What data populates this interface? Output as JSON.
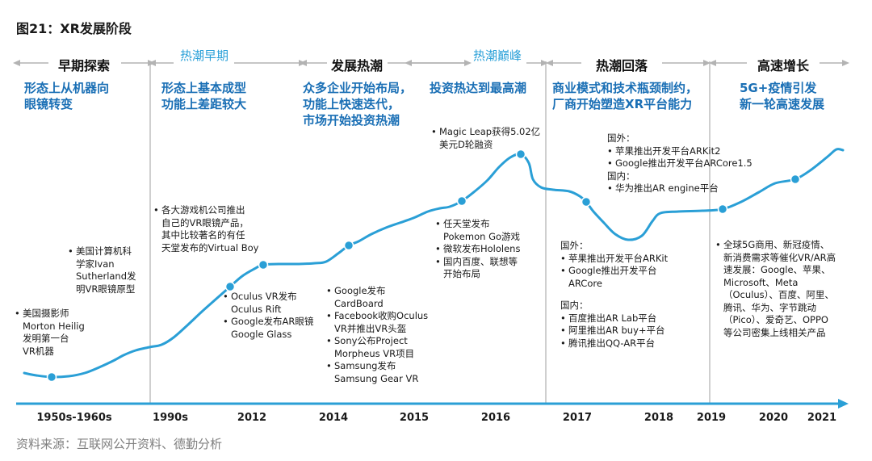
{
  "figure_title": "图21：XR发展阶段",
  "source": "资料来源：互联网公开资料、德勤分析",
  "colors": {
    "curve": "#2a9fd6",
    "axis": "#2a9fd6",
    "point": "#2a9fd6",
    "description": "#1a6fb5",
    "sub_label": "#2aa0d8",
    "divider": "#bfbfbf",
    "stage_arrow": "#b3b3b3"
  },
  "chart_data": {
    "type": "line",
    "title": "",
    "xlabel": "",
    "ylabel": "",
    "grid": false,
    "legend": "none",
    "x_tick_labels": [
      "1950s-1960s",
      "1990s",
      "2012",
      "2014",
      "2015",
      "2016",
      "2017",
      "2018",
      "2019",
      "2020",
      "2021"
    ],
    "stages": [
      {
        "name": "早期探索",
        "description": [
          "形态上从机器向",
          "眼镜转变"
        ]
      },
      {
        "name": "",
        "sub_label": "热潮早期",
        "description": [
          "形态上基本成型",
          "功能上差距较大"
        ]
      },
      {
        "name": "发展热潮",
        "description": [
          "众多企业开始布局，",
          "功能上快速迭代，",
          "市场开始投资热潮"
        ]
      },
      {
        "name": "",
        "sub_label": "热潮巅峰",
        "description": [
          "投资热达到最高潮"
        ]
      },
      {
        "name": "热潮回落",
        "description": [
          "商业模式和技术瓶颈制约，",
          "厂商开始塑造XR平台能力"
        ]
      },
      {
        "name": "高速增长",
        "description": [
          "5G+疫情引发",
          "新一轮高速发展"
        ]
      }
    ],
    "annotations": [
      {
        "id": "a1",
        "lines": [
          "美国摄影师",
          "Morton Heilig",
          "发明第一台",
          "VR机器"
        ]
      },
      {
        "id": "a2",
        "lines": [
          "美国计算机科",
          "学家Ivan",
          "Sutherland发",
          "明VR眼镜原型"
        ]
      },
      {
        "id": "a3",
        "lines": [
          "各大游戏机公司推出",
          "自己的VR眼镜产品，",
          "其中比较著名的有任",
          "天堂发布的Virtual Boy"
        ]
      },
      {
        "id": "a4",
        "lines": [
          "Oculus VR发布",
          "Oculus Rift",
          "Google发布AR眼镜",
          "Google Glass"
        ]
      },
      {
        "id": "a5",
        "lines": [
          "Google发布",
          "CardBoard",
          "Facebook收购Oculus",
          "VR并推出VR头盔",
          "Sony公布Project",
          "Morpheus VR项目",
          "Samsung发布",
          "Samsung Gear VR"
        ]
      },
      {
        "id": "a6",
        "lines": [
          "任天堂发布",
          "Pokemon Go游戏",
          "微软发布Hololens",
          "国内百度、联想等",
          "开始布局"
        ]
      },
      {
        "id": "a7",
        "lines": [
          "Magic Leap获得5.02亿",
          "美元D轮融资"
        ]
      },
      {
        "id": "a8",
        "lines": [
          "国外：",
          "苹果推出开发平台ARKit",
          "Google推出开发平台",
          "ARCore",
          "国内：",
          "百度推出AR Lab平台",
          "阿里推出AR buy+平台",
          "腾讯推出QQ-AR平台"
        ]
      },
      {
        "id": "a9",
        "lines": [
          "国外：",
          "苹果推出开发平台ARKit2",
          "Google推出开发平台ARCore1.5",
          "国内：",
          "华为推出AR engine平台"
        ]
      },
      {
        "id": "a10",
        "lines": [
          "全球5G商用、新冠疫情、",
          "新消费需求等催化VR/AR高",
          "速发展：Google、苹果、",
          "Microsoft、Meta",
          "（Oculus）、百度、阿里、",
          "腾讯、华为、字节跳动",
          "（Pico）、爱奇艺、OPPO",
          "等公司密集上线相关产品"
        ]
      }
    ]
  }
}
